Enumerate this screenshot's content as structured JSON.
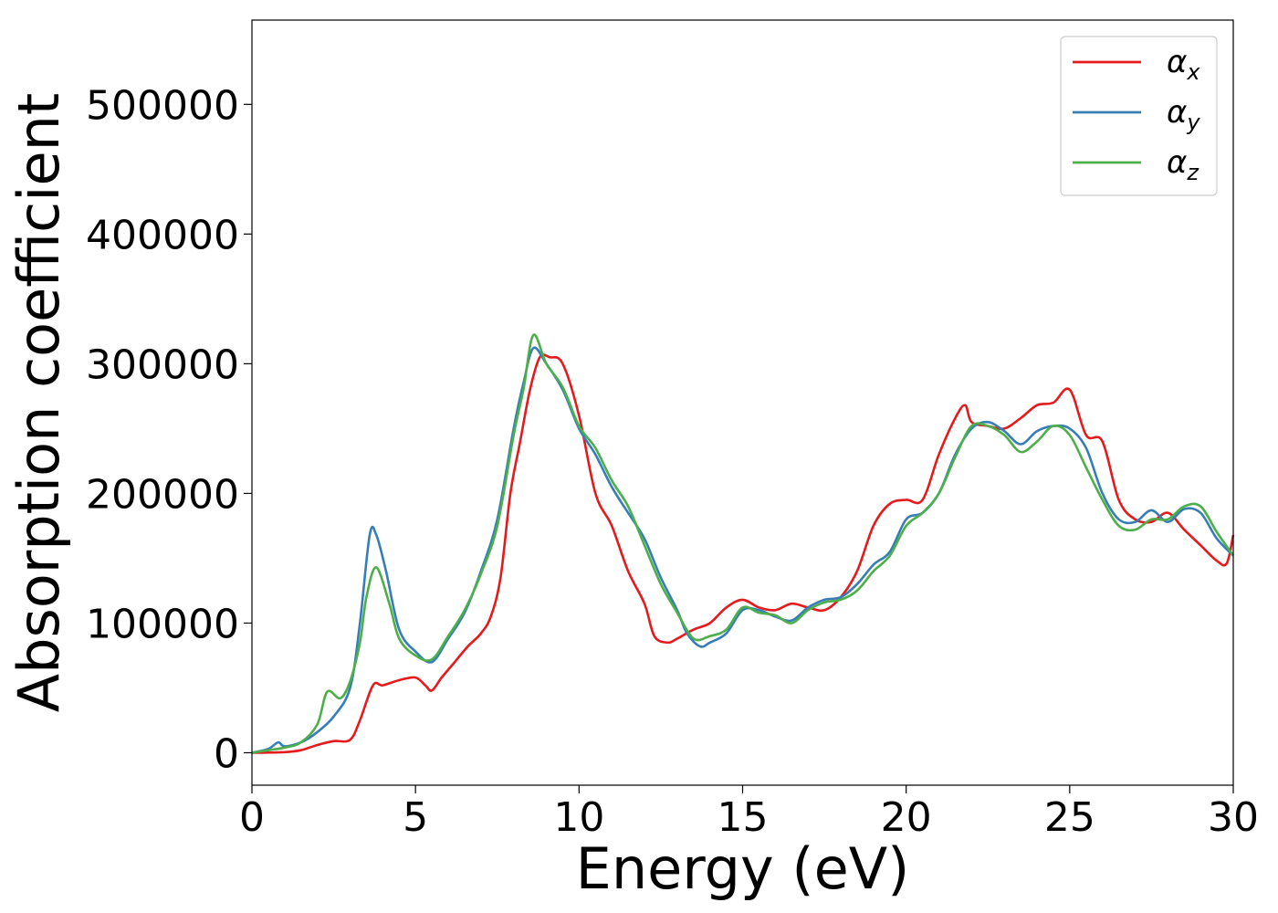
{
  "chart_data": {
    "type": "line",
    "xlabel": "Energy (eV)",
    "ylabel": "Absorption coefficient",
    "xlim": [
      0,
      30
    ],
    "ylim": [
      -25000,
      565000
    ],
    "xticks": [
      0,
      5,
      10,
      15,
      20,
      25,
      30
    ],
    "xtick_labels": [
      "0",
      "5",
      "10",
      "15",
      "20",
      "25",
      "30"
    ],
    "yticks": [
      0,
      100000,
      200000,
      300000,
      400000,
      500000
    ],
    "ytick_labels": [
      "0",
      "100000",
      "200000",
      "300000",
      "400000",
      "500000"
    ],
    "grid": false,
    "legend_position": "top-right",
    "series": [
      {
        "name": "α",
        "subscript": "x",
        "color": "#e41a1c",
        "x": [
          0,
          1,
          1.5,
          2,
          2.5,
          3,
          3.3,
          3.7,
          4,
          4.5,
          5,
          5.3,
          5.5,
          5.8,
          6.2,
          6.6,
          7,
          7.3,
          7.6,
          7.9,
          8.2,
          8.5,
          8.8,
          9.1,
          9.5,
          10,
          10.5,
          11,
          11.5,
          12,
          12.3,
          12.7,
          13,
          13.5,
          14,
          14.5,
          15,
          15.5,
          16,
          16.5,
          17,
          17.5,
          18,
          18.5,
          19,
          19.5,
          20,
          20.5,
          21,
          21.5,
          21.8,
          22,
          22.5,
          23,
          23.5,
          24,
          24.5,
          25,
          25.5,
          26,
          26.5,
          27,
          27.5,
          28,
          28.5,
          29,
          29.5,
          29.8,
          30
        ],
        "y": [
          0,
          500,
          2000,
          6000,
          9000,
          10000,
          25000,
          52000,
          52000,
          56000,
          58000,
          52000,
          48000,
          58000,
          70000,
          82000,
          92000,
          105000,
          135000,
          200000,
          240000,
          280000,
          305000,
          305000,
          300000,
          260000,
          200000,
          175000,
          140000,
          115000,
          90000,
          85000,
          88000,
          95000,
          100000,
          112000,
          118000,
          112000,
          110000,
          115000,
          112000,
          110000,
          120000,
          140000,
          175000,
          192000,
          195000,
          195000,
          230000,
          258000,
          268000,
          255000,
          252000,
          250000,
          258000,
          268000,
          270000,
          280000,
          245000,
          240000,
          195000,
          180000,
          178000,
          185000,
          172000,
          160000,
          148000,
          146000,
          168000
        ]
      },
      {
        "name": "α",
        "subscript": "y",
        "color": "#377eb8",
        "x": [
          0,
          0.5,
          0.8,
          1,
          1.5,
          2,
          2.5,
          3,
          3.3,
          3.6,
          3.8,
          4.1,
          4.5,
          5,
          5.5,
          6,
          6.5,
          7,
          7.5,
          8,
          8.3,
          8.6,
          9,
          9.5,
          10,
          10.5,
          11,
          11.5,
          12,
          12.5,
          13,
          13.3,
          13.7,
          14,
          14.5,
          15,
          15.5,
          16,
          16.5,
          17,
          17.5,
          18,
          18.5,
          19,
          19.5,
          20,
          20.5,
          21,
          21.5,
          22,
          22.5,
          23,
          23.5,
          24,
          24.5,
          25,
          25.5,
          26,
          26.5,
          27,
          27.5,
          28,
          28.5,
          29,
          29.5,
          30
        ],
        "y": [
          0,
          3000,
          8000,
          5000,
          8000,
          16000,
          28000,
          50000,
          100000,
          168000,
          168000,
          140000,
          95000,
          78000,
          70000,
          88000,
          108000,
          140000,
          180000,
          250000,
          285000,
          312000,
          300000,
          280000,
          250000,
          230000,
          205000,
          185000,
          165000,
          135000,
          110000,
          92000,
          82000,
          85000,
          92000,
          110000,
          110000,
          105000,
          102000,
          112000,
          118000,
          120000,
          130000,
          145000,
          155000,
          180000,
          185000,
          200000,
          230000,
          250000,
          255000,
          248000,
          238000,
          248000,
          252000,
          250000,
          235000,
          200000,
          180000,
          178000,
          187000,
          178000,
          188000,
          185000,
          165000,
          152000
        ]
      },
      {
        "name": "α",
        "subscript": "z",
        "color": "#4daf4a",
        "x": [
          0,
          0.5,
          1,
          1.5,
          2,
          2.3,
          2.7,
          3,
          3.3,
          3.5,
          3.8,
          4.2,
          4.5,
          5,
          5.5,
          6,
          6.5,
          7,
          7.5,
          8,
          8.3,
          8.6,
          9,
          9.5,
          10,
          10.5,
          11,
          11.5,
          12,
          12.5,
          13,
          13.5,
          14,
          14.5,
          15,
          15.5,
          16,
          16.5,
          17,
          17.5,
          18,
          18.5,
          19,
          19.5,
          20,
          20.5,
          21,
          21.5,
          22,
          22.5,
          23,
          23.5,
          24,
          24.5,
          25,
          25.5,
          26,
          26.5,
          27,
          27.5,
          28,
          28.5,
          29,
          29.5,
          30
        ],
        "y": [
          0,
          2000,
          4000,
          8000,
          22000,
          47000,
          42000,
          55000,
          85000,
          120000,
          143000,
          115000,
          88000,
          75000,
          72000,
          90000,
          110000,
          138000,
          175000,
          245000,
          280000,
          322000,
          300000,
          282000,
          252000,
          235000,
          210000,
          190000,
          160000,
          130000,
          108000,
          88000,
          90000,
          95000,
          112000,
          108000,
          106000,
          100000,
          110000,
          116000,
          118000,
          125000,
          140000,
          152000,
          175000,
          185000,
          200000,
          228000,
          252000,
          252000,
          245000,
          232000,
          240000,
          252000,
          245000,
          220000,
          195000,
          175000,
          172000,
          180000,
          180000,
          190000,
          190000,
          170000,
          152000
        ]
      }
    ]
  }
}
